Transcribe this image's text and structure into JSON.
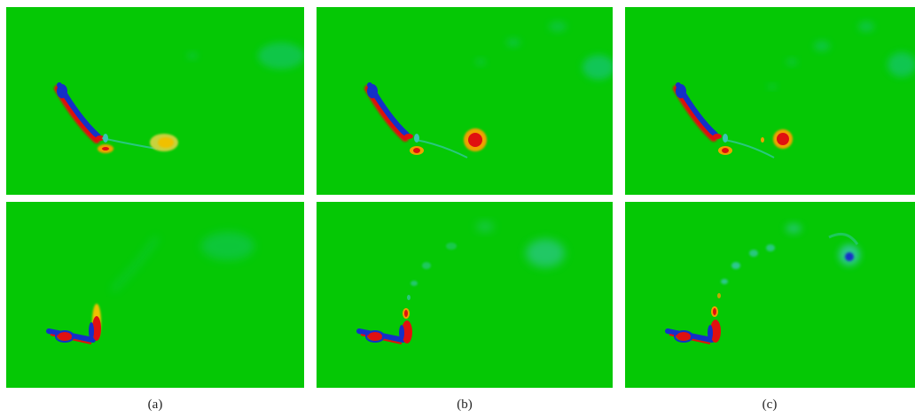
{
  "figure": {
    "captions": [
      "(a)",
      "(b)",
      "(c)"
    ],
    "colors": {
      "background": "#05c805",
      "positive_vorticity": "#e01010",
      "positive_mid": "#f0a000",
      "weak_positive": "#c8d23c",
      "negative_vorticity": "#1430c8",
      "weak_negative": "#38c8b4"
    }
  }
}
